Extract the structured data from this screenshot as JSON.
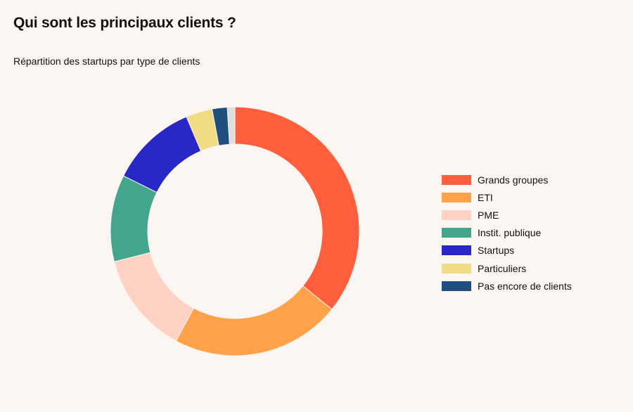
{
  "header": {
    "title": "Qui sont les principaux clients ?",
    "subtitle": "Répartition des startups par type de clients"
  },
  "chart_data": {
    "type": "pie",
    "donut": true,
    "legend_position": "right",
    "start_angle_deg": 0,
    "direction": "clockwise",
    "slices": [
      {
        "label": "Grands groupes",
        "value": 36.5,
        "color": "#ff5f3d"
      },
      {
        "label": "ETI",
        "value": 22.5,
        "color": "#ffa24a"
      },
      {
        "label": "PME",
        "value": 13.5,
        "color": "#ffd2c3"
      },
      {
        "label": "Instit. publique",
        "value": 11.5,
        "color": "#43a68c"
      },
      {
        "label": "Startups",
        "value": 11.5,
        "color": "#2828c6"
      },
      {
        "label": "Particuliers",
        "value": 3.5,
        "color": "#f0dc85"
      },
      {
        "label": "Pas encore de clients",
        "value": 2.0,
        "color": "#204e7d"
      },
      {
        "label": "",
        "value": 1.0,
        "color": "#dedede"
      }
    ]
  }
}
